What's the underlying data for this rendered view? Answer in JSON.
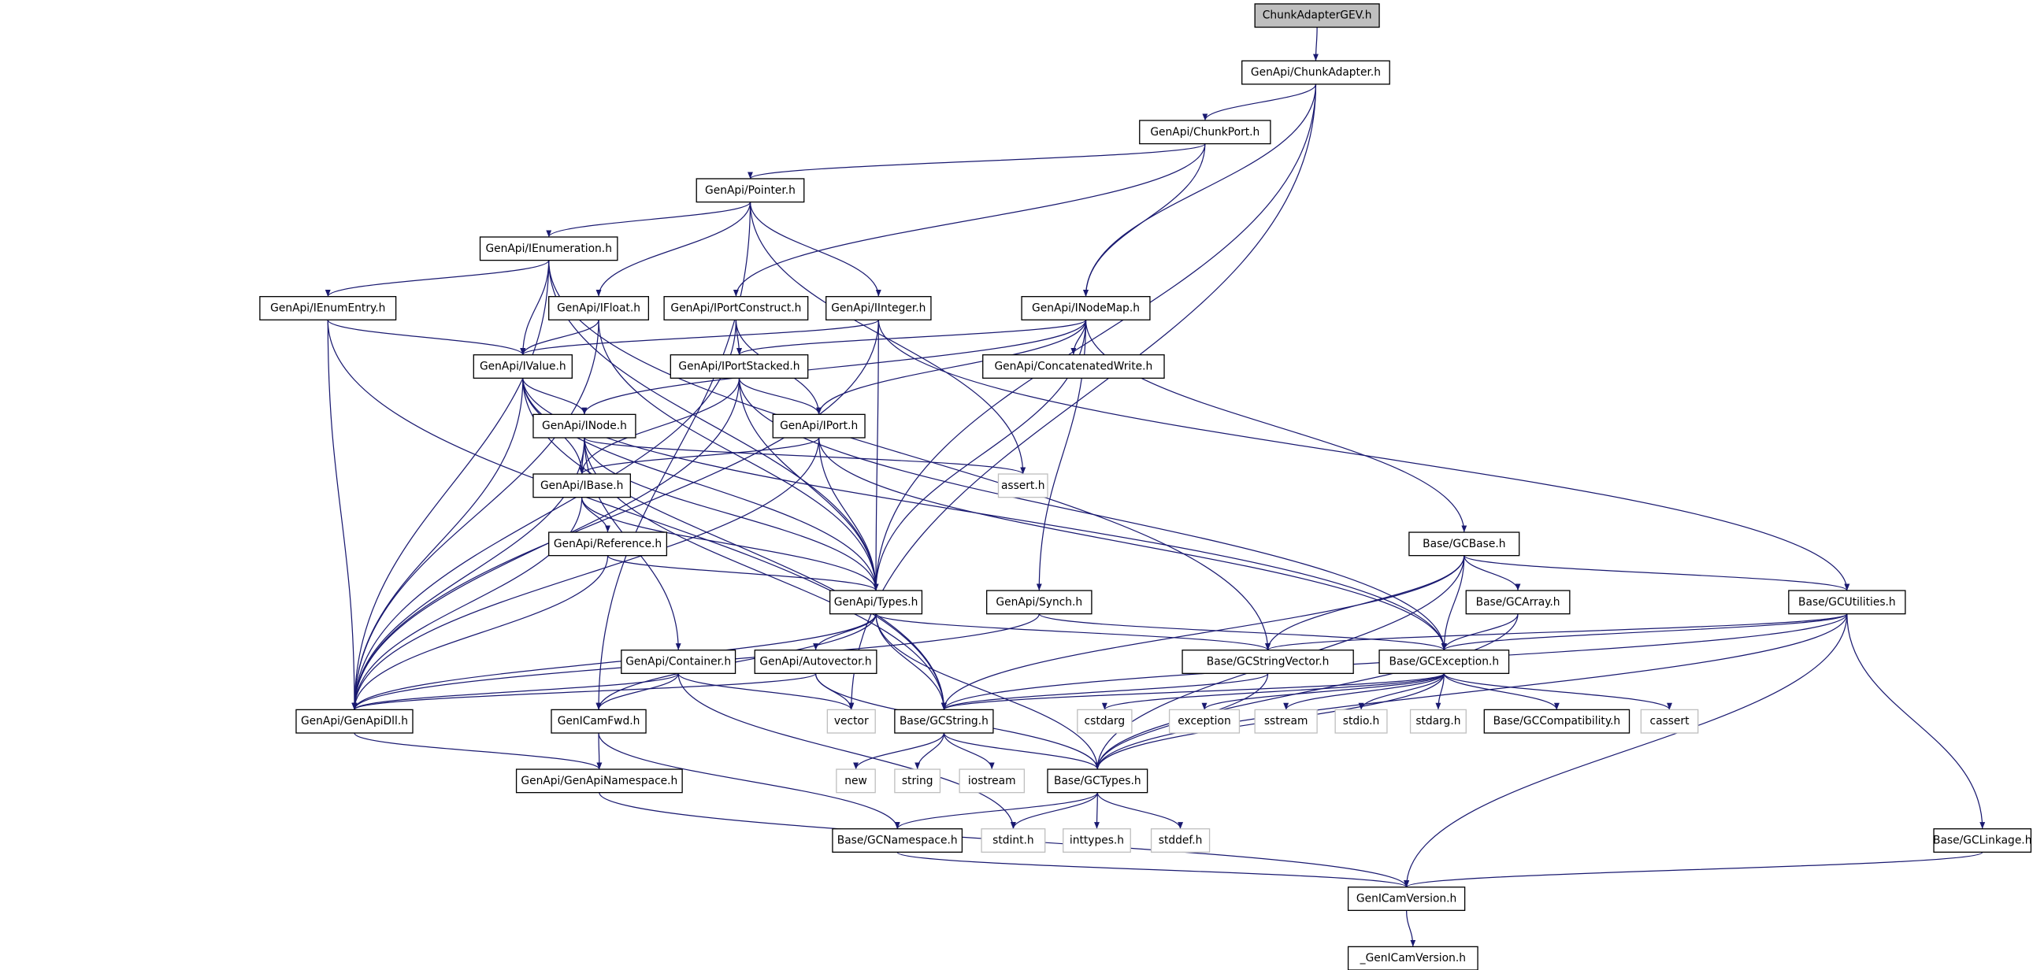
{
  "colors": {
    "edge": "#191970",
    "root_fill": "#bfbfbf",
    "node_border": "#000000",
    "system_border": "#bfbfbf"
  },
  "nodes": {
    "root": "ChunkAdapterGEV.h",
    "chunkadapter": "GenApi/ChunkAdapter.h",
    "chunkport": "GenApi/ChunkPort.h",
    "pointer": "GenApi/Pointer.h",
    "ienumeration": "GenApi/IEnumeration.h",
    "ienumentry": "GenApi/IEnumEntry.h",
    "ifloat": "GenApi/IFloat.h",
    "iportconstruct": "GenApi/IPortConstruct.h",
    "iinteger": "GenApi/IInteger.h",
    "inodemap": "GenApi/INodeMap.h",
    "ivalue": "GenApi/IValue.h",
    "iportstacked": "GenApi/IPortStacked.h",
    "concatenatedwrite": "GenApi/ConcatenatedWrite.h",
    "inode": "GenApi/INode.h",
    "iport": "GenApi/IPort.h",
    "ibase": "GenApi/IBase.h",
    "assert": "assert.h",
    "reference": "GenApi/Reference.h",
    "gcbase": "Base/GCBase.h",
    "types": "GenApi/Types.h",
    "synch": "GenApi/Synch.h",
    "gcarray": "Base/GCArray.h",
    "gcutilities": "Base/GCUtilities.h",
    "container": "GenApi/Container.h",
    "autovector": "GenApi/Autovector.h",
    "gcstringvector": "Base/GCStringVector.h",
    "gcexception": "Base/GCException.h",
    "genapidll": "GenApi/GenApiDll.h",
    "genicamfwd": "GenICamFwd.h",
    "vector": "vector",
    "gcstring": "Base/GCString.h",
    "cstdarg": "cstdarg",
    "exception": "exception",
    "sstream": "sstream",
    "stdio": "stdio.h",
    "stdarg": "stdarg.h",
    "gccompatibility": "Base/GCCompatibility.h",
    "cassert": "cassert",
    "genapinamespace": "GenApi/GenApiNamespace.h",
    "new": "new",
    "string": "string",
    "iostream": "iostream",
    "gctypes": "Base/GCTypes.h",
    "gcnamespace": "Base/GCNamespace.h",
    "stdint": "stdint.h",
    "inttypes": "inttypes.h",
    "stddef": "stddef.h",
    "gclinkage": "Base/GCLinkage.h",
    "genicamversion": "GenICamVersion.h",
    "_genicamversion": "_GenICamVersion.h"
  },
  "system_headers": [
    "assert",
    "vector",
    "cstdarg",
    "exception",
    "sstream",
    "stdio",
    "stdarg",
    "cassert",
    "new",
    "string",
    "iostream",
    "stdint",
    "inttypes",
    "stddef"
  ],
  "edges": [
    [
      "root",
      "chunkadapter"
    ],
    [
      "chunkadapter",
      "chunkport"
    ],
    [
      "chunkadapter",
      "inodemap"
    ],
    [
      "chunkadapter",
      "types"
    ],
    [
      "chunkadapter",
      "vector"
    ],
    [
      "chunkport",
      "pointer"
    ],
    [
      "chunkport",
      "iportconstruct"
    ],
    [
      "chunkport",
      "inodemap"
    ],
    [
      "pointer",
      "ienumeration"
    ],
    [
      "pointer",
      "ifloat"
    ],
    [
      "pointer",
      "iinteger"
    ],
    [
      "pointer",
      "genicamfwd"
    ],
    [
      "pointer",
      "assert"
    ],
    [
      "ienumeration",
      "ienumentry"
    ],
    [
      "ienumeration",
      "ivalue"
    ],
    [
      "ienumeration",
      "genapidll"
    ],
    [
      "ienumeration",
      "types"
    ],
    [
      "ienumeration",
      "gcstringvector"
    ],
    [
      "ienumentry",
      "ivalue"
    ],
    [
      "ienumentry",
      "genapidll"
    ],
    [
      "ienumentry",
      "gcstring"
    ],
    [
      "ifloat",
      "ivalue"
    ],
    [
      "ifloat",
      "genapidll"
    ],
    [
      "ifloat",
      "types"
    ],
    [
      "iportconstruct",
      "iportstacked"
    ],
    [
      "iportconstruct",
      "iport"
    ],
    [
      "iportconstruct",
      "genapidll"
    ],
    [
      "iinteger",
      "ivalue"
    ],
    [
      "iinteger",
      "genapidll"
    ],
    [
      "iinteger",
      "types"
    ],
    [
      "iinteger",
      "gcutilities"
    ],
    [
      "inodemap",
      "concatenatedwrite"
    ],
    [
      "inodemap",
      "iport"
    ],
    [
      "inodemap",
      "inode"
    ],
    [
      "inodemap",
      "iportstacked"
    ],
    [
      "inodemap",
      "synch"
    ],
    [
      "inodemap",
      "gcbase"
    ],
    [
      "inodemap",
      "types"
    ],
    [
      "ivalue",
      "inode"
    ],
    [
      "ivalue",
      "ibase"
    ],
    [
      "ivalue",
      "genapidll"
    ],
    [
      "ivalue",
      "types"
    ],
    [
      "ivalue",
      "gcstring"
    ],
    [
      "ivalue",
      "gcexception"
    ],
    [
      "iportstacked",
      "iport"
    ],
    [
      "iportstacked",
      "ibase"
    ],
    [
      "iportstacked",
      "genapidll"
    ],
    [
      "iportstacked",
      "types"
    ],
    [
      "iportstacked",
      "gcexception"
    ],
    [
      "inode",
      "ibase"
    ],
    [
      "inode",
      "assert"
    ],
    [
      "inode",
      "genapidll"
    ],
    [
      "inode",
      "types"
    ],
    [
      "inode",
      "container"
    ],
    [
      "inode",
      "gcstring"
    ],
    [
      "iport",
      "ibase"
    ],
    [
      "iport",
      "genapidll"
    ],
    [
      "iport",
      "types"
    ],
    [
      "iport",
      "gcexception"
    ],
    [
      "ibase",
      "reference"
    ],
    [
      "ibase",
      "genapidll"
    ],
    [
      "ibase",
      "types"
    ],
    [
      "reference",
      "types"
    ],
    [
      "reference",
      "genapidll"
    ],
    [
      "types",
      "genapidll"
    ],
    [
      "types",
      "genicamfwd"
    ],
    [
      "types",
      "autovector"
    ],
    [
      "types",
      "gcstring"
    ],
    [
      "types",
      "gcstringvector"
    ],
    [
      "types",
      "gctypes"
    ],
    [
      "synch",
      "gcexception"
    ],
    [
      "synch",
      "genapidll"
    ],
    [
      "gcbase",
      "gcarray"
    ],
    [
      "gcbase",
      "gcexception"
    ],
    [
      "gcbase",
      "gcstringvector"
    ],
    [
      "gcbase",
      "gcutilities"
    ],
    [
      "gcbase",
      "gctypes"
    ],
    [
      "gcbase",
      "gcstring"
    ],
    [
      "gcarray",
      "gcexception"
    ],
    [
      "gcarray",
      "gctypes"
    ],
    [
      "gcutilities",
      "gcexception"
    ],
    [
      "gcutilities",
      "gcstringvector"
    ],
    [
      "gcutilities",
      "gcstring"
    ],
    [
      "gcutilities",
      "gctypes"
    ],
    [
      "gcutilities",
      "gclinkage"
    ],
    [
      "gcutilities",
      "genicamversion"
    ],
    [
      "container",
      "genapidll"
    ],
    [
      "container",
      "genicamfwd"
    ],
    [
      "container",
      "vector"
    ],
    [
      "container",
      "stdint"
    ],
    [
      "autovector",
      "vector"
    ],
    [
      "autovector",
      "genapidll"
    ],
    [
      "autovector",
      "gctypes"
    ],
    [
      "gcstringvector",
      "gcstring"
    ],
    [
      "gcstringvector",
      "gctypes"
    ],
    [
      "gcexception",
      "gcstring"
    ],
    [
      "gcexception",
      "cstdarg"
    ],
    [
      "gcexception",
      "exception"
    ],
    [
      "gcexception",
      "sstream"
    ],
    [
      "gcexception",
      "stdio"
    ],
    [
      "gcexception",
      "stdarg"
    ],
    [
      "gcexception",
      "gccompatibility"
    ],
    [
      "gcexception",
      "cassert"
    ],
    [
      "gcexception",
      "gctypes"
    ],
    [
      "genapidll",
      "genapinamespace"
    ],
    [
      "genicamfwd",
      "genapinamespace"
    ],
    [
      "genicamfwd",
      "gcnamespace"
    ],
    [
      "gcstring",
      "new"
    ],
    [
      "gcstring",
      "string"
    ],
    [
      "gcstring",
      "iostream"
    ],
    [
      "gcstring",
      "gctypes"
    ],
    [
      "genapinamespace",
      "genicamversion"
    ],
    [
      "gctypes",
      "gcnamespace"
    ],
    [
      "gctypes",
      "stdint"
    ],
    [
      "gctypes",
      "inttypes"
    ],
    [
      "gctypes",
      "stddef"
    ],
    [
      "gcnamespace",
      "genicamversion"
    ],
    [
      "gclinkage",
      "genicamversion"
    ],
    [
      "genicamversion",
      "_genicamversion"
    ]
  ]
}
